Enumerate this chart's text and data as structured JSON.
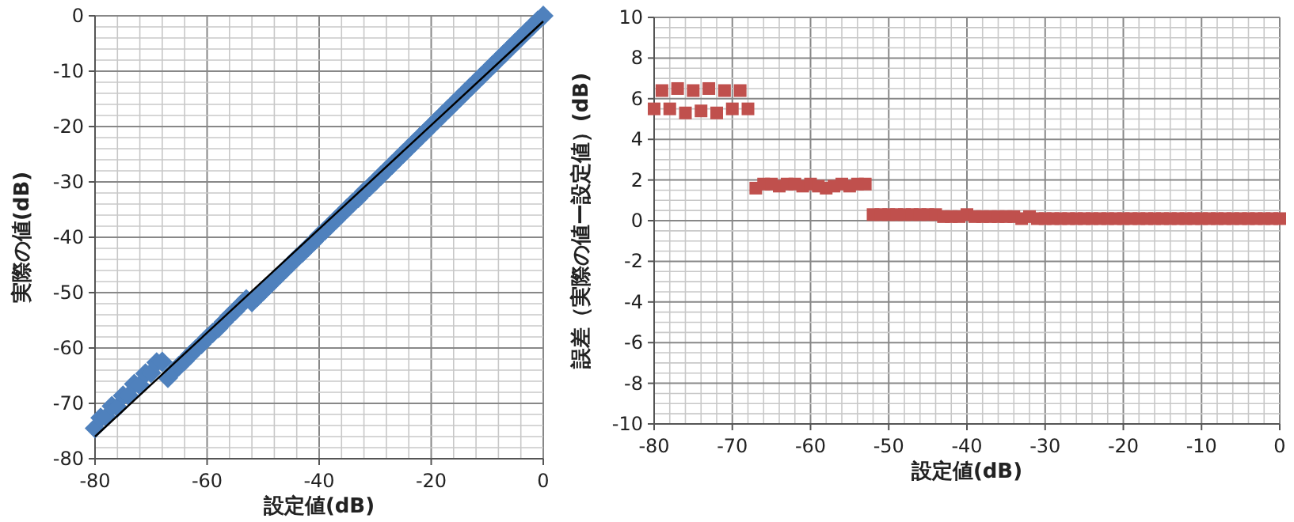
{
  "chart_data": [
    {
      "type": "scatter",
      "xlabel": "設定値(dB)",
      "ylabel": "実際の値(dB)",
      "xlim": [
        -80,
        0
      ],
      "ylim": [
        -80,
        0
      ],
      "xticks": [
        -80,
        -60,
        -40,
        -20,
        0
      ],
      "yticks": [
        -80,
        -70,
        -60,
        -50,
        -40,
        -30,
        -20,
        -10,
        0
      ],
      "grid": true,
      "series": [
        {
          "type": "scatter",
          "marker": "diamond",
          "color": "#4f81bd",
          "x": [
            -80,
            -79,
            -78,
            -77,
            -76,
            -75,
            -74,
            -73,
            -72,
            -71,
            -70,
            -69,
            -68,
            -67,
            -66,
            -65,
            -64,
            -63,
            -62,
            -61,
            -60,
            -59,
            -58,
            -57,
            -56,
            -55,
            -54,
            -53,
            -52,
            -51,
            -50,
            -49,
            -48,
            -47,
            -46,
            -45,
            -44,
            -43,
            -42,
            -41,
            -40,
            -39,
            -38,
            -37,
            -36,
            -35,
            -34,
            -33,
            -32,
            -31,
            -30,
            -29,
            -28,
            -27,
            -26,
            -25,
            -24,
            -23,
            -22,
            -21,
            -20,
            -19,
            -18,
            -17,
            -16,
            -15,
            -14,
            -13,
            -12,
            -11,
            -10,
            -9,
            -8,
            -7,
            -6,
            -5,
            -4,
            -3,
            -2,
            -1,
            0
          ],
          "values": [
            -74.5,
            -72.6,
            -72.5,
            -70.5,
            -70.7,
            -68.6,
            -68.6,
            -66.5,
            -66.7,
            -64.6,
            -64.5,
            -62.6,
            -62.5,
            -65.4,
            -64.2,
            -63.2,
            -62.3,
            -61.2,
            -60.2,
            -59.3,
            -58.2,
            -57.3,
            -56.4,
            -55.3,
            -54.2,
            -53.3,
            -52.2,
            -51.2,
            -51.7,
            -50.7,
            -49.7,
            -48.7,
            -47.7,
            -46.7,
            -45.7,
            -44.7,
            -43.7,
            -42.8,
            -41.8,
            -40.8,
            -39.7,
            -38.8,
            -37.8,
            -36.8,
            -35.8,
            -34.8,
            -33.8,
            -32.9,
            -31.8,
            -30.9,
            -29.9,
            -28.9,
            -27.9,
            -26.9,
            -25.9,
            -24.9,
            -23.9,
            -22.9,
            -21.9,
            -20.9,
            -19.9,
            -18.9,
            -17.9,
            -16.9,
            -15.9,
            -14.9,
            -13.9,
            -12.9,
            -11.9,
            -10.9,
            -9.9,
            -8.9,
            -7.9,
            -6.9,
            -5.9,
            -4.9,
            -3.9,
            -2.9,
            -1.9,
            -0.9,
            0
          ]
        },
        {
          "type": "line",
          "marker": "none",
          "line_style": "solid",
          "color": "#000000",
          "x": [
            -80,
            0
          ],
          "values": [
            -76,
            -1
          ]
        }
      ]
    },
    {
      "type": "scatter",
      "xlabel": "設定値(dB)",
      "ylabel": "誤差（実際の値ー設定値）(dB)",
      "xlim": [
        -80,
        0
      ],
      "ylim": [
        -10,
        10
      ],
      "xticks": [
        -80,
        -70,
        -60,
        -50,
        -40,
        -30,
        -20,
        -10,
        0
      ],
      "yticks": [
        -10,
        -8,
        -6,
        -4,
        -2,
        0,
        2,
        4,
        6,
        8,
        10
      ],
      "grid": true,
      "series": [
        {
          "type": "scatter",
          "marker": "square",
          "color": "#c0504d",
          "x": [
            -80,
            -79,
            -78,
            -77,
            -76,
            -75,
            -74,
            -73,
            -72,
            -71,
            -70,
            -69,
            -68,
            -67,
            -66,
            -65,
            -64,
            -63,
            -62,
            -61,
            -60,
            -59,
            -58,
            -57,
            -56,
            -55,
            -54,
            -53,
            -52,
            -51,
            -50,
            -49,
            -48,
            -47,
            -46,
            -45,
            -44,
            -43,
            -42,
            -41,
            -40,
            -39,
            -38,
            -37,
            -36,
            -35,
            -34,
            -33,
            -32,
            -31,
            -30,
            -29,
            -28,
            -27,
            -26,
            -25,
            -24,
            -23,
            -22,
            -21,
            -20,
            -19,
            -18,
            -17,
            -16,
            -15,
            -14,
            -13,
            -12,
            -11,
            -10,
            -9,
            -8,
            -7,
            -6,
            -5,
            -4,
            -3,
            -2,
            -1,
            0
          ],
          "values": [
            5.5,
            6.4,
            5.5,
            6.5,
            5.3,
            6.4,
            5.4,
            6.5,
            5.3,
            6.4,
            5.5,
            6.4,
            5.5,
            1.6,
            1.8,
            1.8,
            1.7,
            1.8,
            1.8,
            1.7,
            1.8,
            1.7,
            1.6,
            1.7,
            1.8,
            1.7,
            1.8,
            1.8,
            0.3,
            0.3,
            0.3,
            0.3,
            0.3,
            0.3,
            0.3,
            0.3,
            0.3,
            0.2,
            0.2,
            0.2,
            0.3,
            0.2,
            0.2,
            0.2,
            0.2,
            0.2,
            0.2,
            0.1,
            0.2,
            0.1,
            0.1,
            0.1,
            0.1,
            0.1,
            0.1,
            0.1,
            0.1,
            0.1,
            0.1,
            0.1,
            0.1,
            0.1,
            0.1,
            0.1,
            0.1,
            0.1,
            0.1,
            0.1,
            0.1,
            0.1,
            0.1,
            0.1,
            0.1,
            0.1,
            0.1,
            0.1,
            0.1,
            0.1,
            0.1,
            0.1,
            0.1
          ]
        }
      ]
    }
  ]
}
